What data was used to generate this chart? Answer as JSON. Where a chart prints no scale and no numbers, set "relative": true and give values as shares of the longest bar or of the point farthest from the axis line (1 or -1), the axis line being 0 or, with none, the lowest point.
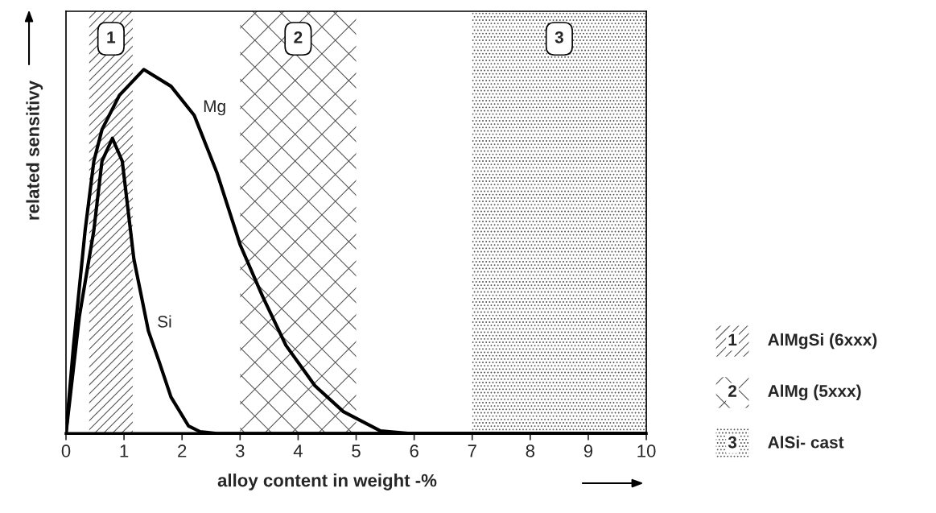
{
  "chart_data": {
    "type": "line",
    "relative": true,
    "xlabel": "alloy content in weight -%",
    "ylabel": "related sensitivy",
    "xlim": [
      0,
      10
    ],
    "xticks": [
      0,
      1,
      2,
      3,
      4,
      5,
      6,
      7,
      8,
      9,
      10
    ],
    "legend": false,
    "grid": false,
    "marker": "none",
    "line_style": "solid",
    "series": [
      {
        "name": "Mg",
        "color": "#000000",
        "x": [
          0,
          0.13,
          0.33,
          0.48,
          0.62,
          0.92,
          1.34,
          1.81,
          2.21,
          2.6,
          3.0,
          3.39,
          3.79,
          4.29,
          4.78,
          5.42,
          5.93,
          10
        ],
        "values": [
          0,
          0.242,
          0.558,
          0.748,
          0.835,
          0.929,
          1.0,
          0.954,
          0.874,
          0.717,
          0.519,
          0.376,
          0.242,
          0.131,
          0.06,
          0.007,
          0,
          0
        ]
      },
      {
        "name": "Si",
        "color": "#000000",
        "x": [
          0,
          0.23,
          0.48,
          0.62,
          0.8,
          0.97,
          1.17,
          1.42,
          1.61,
          1.81,
          2.11,
          2.31,
          2.6,
          10
        ],
        "values": [
          0,
          0.321,
          0.558,
          0.748,
          0.811,
          0.748,
          0.479,
          0.282,
          0.195,
          0.1,
          0.021,
          0.005,
          0,
          0
        ]
      }
    ],
    "bands": [
      {
        "axis": "x",
        "from": 0.4,
        "to": 1.15,
        "label": "1"
      },
      {
        "axis": "x",
        "from": 3,
        "to": 5,
        "label": "2"
      },
      {
        "axis": "x",
        "from": 7,
        "to": 10,
        "label": "3"
      }
    ],
    "annotations": [
      "AlMgSi (6xxx)",
      "AlMg (5xxx)",
      "AlSi- cast"
    ]
  }
}
